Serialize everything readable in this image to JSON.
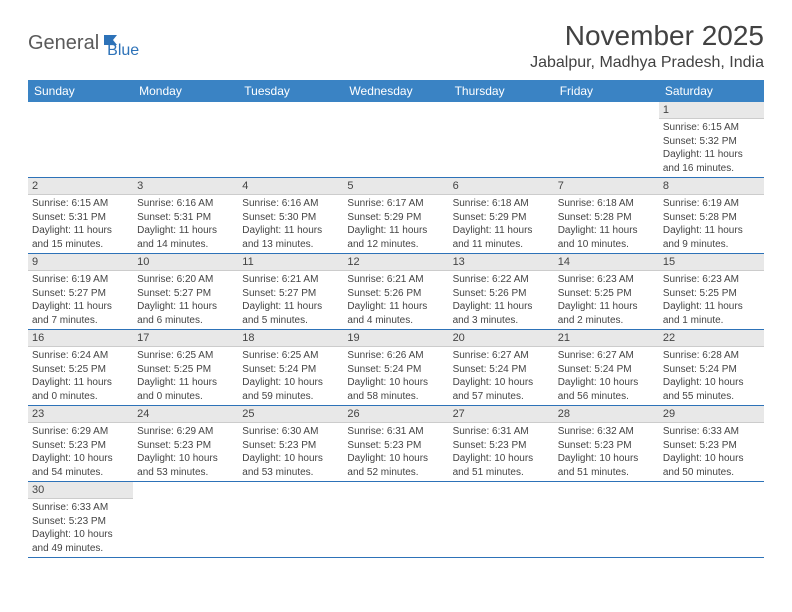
{
  "logo": {
    "part1": "General",
    "part2": "Blue"
  },
  "title": "November 2025",
  "location": "Jabalpur, Madhya Pradesh, India",
  "colors": {
    "header_bg": "#3a83c4",
    "header_text": "#ffffff",
    "day_num_bg": "#e8e8e8",
    "border": "#2d72b8",
    "logo_gray": "#5a5a5a",
    "logo_blue": "#2d72b8"
  },
  "weekdays": [
    "Sunday",
    "Monday",
    "Tuesday",
    "Wednesday",
    "Thursday",
    "Friday",
    "Saturday"
  ],
  "weeks": [
    [
      null,
      null,
      null,
      null,
      null,
      null,
      {
        "n": "1",
        "sr": "Sunrise: 6:15 AM",
        "ss": "Sunset: 5:32 PM",
        "dl": "Daylight: 11 hours and 16 minutes."
      }
    ],
    [
      {
        "n": "2",
        "sr": "Sunrise: 6:15 AM",
        "ss": "Sunset: 5:31 PM",
        "dl": "Daylight: 11 hours and 15 minutes."
      },
      {
        "n": "3",
        "sr": "Sunrise: 6:16 AM",
        "ss": "Sunset: 5:31 PM",
        "dl": "Daylight: 11 hours and 14 minutes."
      },
      {
        "n": "4",
        "sr": "Sunrise: 6:16 AM",
        "ss": "Sunset: 5:30 PM",
        "dl": "Daylight: 11 hours and 13 minutes."
      },
      {
        "n": "5",
        "sr": "Sunrise: 6:17 AM",
        "ss": "Sunset: 5:29 PM",
        "dl": "Daylight: 11 hours and 12 minutes."
      },
      {
        "n": "6",
        "sr": "Sunrise: 6:18 AM",
        "ss": "Sunset: 5:29 PM",
        "dl": "Daylight: 11 hours and 11 minutes."
      },
      {
        "n": "7",
        "sr": "Sunrise: 6:18 AM",
        "ss": "Sunset: 5:28 PM",
        "dl": "Daylight: 11 hours and 10 minutes."
      },
      {
        "n": "8",
        "sr": "Sunrise: 6:19 AM",
        "ss": "Sunset: 5:28 PM",
        "dl": "Daylight: 11 hours and 9 minutes."
      }
    ],
    [
      {
        "n": "9",
        "sr": "Sunrise: 6:19 AM",
        "ss": "Sunset: 5:27 PM",
        "dl": "Daylight: 11 hours and 7 minutes."
      },
      {
        "n": "10",
        "sr": "Sunrise: 6:20 AM",
        "ss": "Sunset: 5:27 PM",
        "dl": "Daylight: 11 hours and 6 minutes."
      },
      {
        "n": "11",
        "sr": "Sunrise: 6:21 AM",
        "ss": "Sunset: 5:27 PM",
        "dl": "Daylight: 11 hours and 5 minutes."
      },
      {
        "n": "12",
        "sr": "Sunrise: 6:21 AM",
        "ss": "Sunset: 5:26 PM",
        "dl": "Daylight: 11 hours and 4 minutes."
      },
      {
        "n": "13",
        "sr": "Sunrise: 6:22 AM",
        "ss": "Sunset: 5:26 PM",
        "dl": "Daylight: 11 hours and 3 minutes."
      },
      {
        "n": "14",
        "sr": "Sunrise: 6:23 AM",
        "ss": "Sunset: 5:25 PM",
        "dl": "Daylight: 11 hours and 2 minutes."
      },
      {
        "n": "15",
        "sr": "Sunrise: 6:23 AM",
        "ss": "Sunset: 5:25 PM",
        "dl": "Daylight: 11 hours and 1 minute."
      }
    ],
    [
      {
        "n": "16",
        "sr": "Sunrise: 6:24 AM",
        "ss": "Sunset: 5:25 PM",
        "dl": "Daylight: 11 hours and 0 minutes."
      },
      {
        "n": "17",
        "sr": "Sunrise: 6:25 AM",
        "ss": "Sunset: 5:25 PM",
        "dl": "Daylight: 11 hours and 0 minutes."
      },
      {
        "n": "18",
        "sr": "Sunrise: 6:25 AM",
        "ss": "Sunset: 5:24 PM",
        "dl": "Daylight: 10 hours and 59 minutes."
      },
      {
        "n": "19",
        "sr": "Sunrise: 6:26 AM",
        "ss": "Sunset: 5:24 PM",
        "dl": "Daylight: 10 hours and 58 minutes."
      },
      {
        "n": "20",
        "sr": "Sunrise: 6:27 AM",
        "ss": "Sunset: 5:24 PM",
        "dl": "Daylight: 10 hours and 57 minutes."
      },
      {
        "n": "21",
        "sr": "Sunrise: 6:27 AM",
        "ss": "Sunset: 5:24 PM",
        "dl": "Daylight: 10 hours and 56 minutes."
      },
      {
        "n": "22",
        "sr": "Sunrise: 6:28 AM",
        "ss": "Sunset: 5:24 PM",
        "dl": "Daylight: 10 hours and 55 minutes."
      }
    ],
    [
      {
        "n": "23",
        "sr": "Sunrise: 6:29 AM",
        "ss": "Sunset: 5:23 PM",
        "dl": "Daylight: 10 hours and 54 minutes."
      },
      {
        "n": "24",
        "sr": "Sunrise: 6:29 AM",
        "ss": "Sunset: 5:23 PM",
        "dl": "Daylight: 10 hours and 53 minutes."
      },
      {
        "n": "25",
        "sr": "Sunrise: 6:30 AM",
        "ss": "Sunset: 5:23 PM",
        "dl": "Daylight: 10 hours and 53 minutes."
      },
      {
        "n": "26",
        "sr": "Sunrise: 6:31 AM",
        "ss": "Sunset: 5:23 PM",
        "dl": "Daylight: 10 hours and 52 minutes."
      },
      {
        "n": "27",
        "sr": "Sunrise: 6:31 AM",
        "ss": "Sunset: 5:23 PM",
        "dl": "Daylight: 10 hours and 51 minutes."
      },
      {
        "n": "28",
        "sr": "Sunrise: 6:32 AM",
        "ss": "Sunset: 5:23 PM",
        "dl": "Daylight: 10 hours and 51 minutes."
      },
      {
        "n": "29",
        "sr": "Sunrise: 6:33 AM",
        "ss": "Sunset: 5:23 PM",
        "dl": "Daylight: 10 hours and 50 minutes."
      }
    ],
    [
      {
        "n": "30",
        "sr": "Sunrise: 6:33 AM",
        "ss": "Sunset: 5:23 PM",
        "dl": "Daylight: 10 hours and 49 minutes."
      },
      null,
      null,
      null,
      null,
      null,
      null
    ]
  ]
}
